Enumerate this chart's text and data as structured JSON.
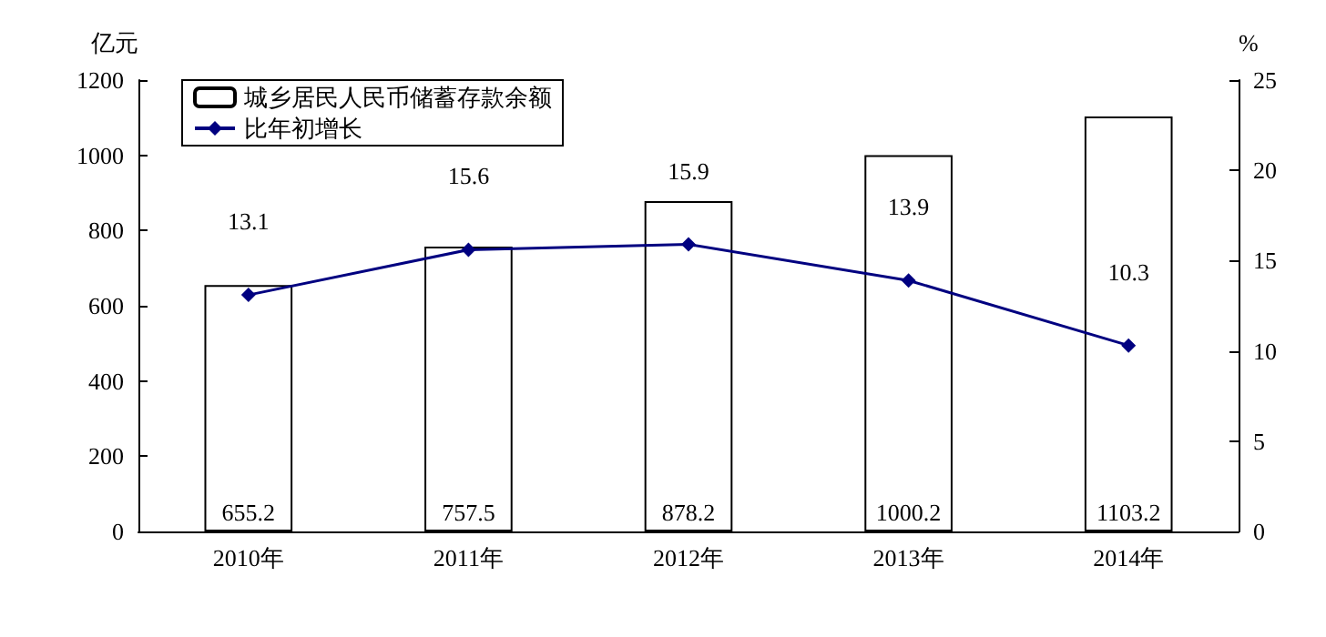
{
  "chart_data": {
    "type": "bar",
    "ylabel": "亿元",
    "y2label": "%",
    "categories": [
      "2010年",
      "2011年",
      "2012年",
      "2013年",
      "2014年"
    ],
    "series": [
      {
        "name": "城乡居民人民币储蓄存款余额",
        "color": "#ffffff",
        "values": [
          655.2,
          757.5,
          878.2,
          1000.2,
          1103.2
        ]
      },
      {
        "name": "比年初增长",
        "type": "line",
        "axis": "y2",
        "color": "#000080",
        "values": [
          13.1,
          15.6,
          15.9,
          13.9,
          10.3
        ]
      }
    ],
    "ylim": [
      0,
      1200
    ],
    "yticks": [
      0,
      200,
      400,
      600,
      800,
      1000,
      1200
    ],
    "y2lim": [
      0,
      25
    ],
    "y2ticks": [
      0,
      5,
      10,
      15,
      20,
      25
    ],
    "data_labels": true,
    "legend": "top left",
    "grid": false,
    "marker": "diamond"
  }
}
